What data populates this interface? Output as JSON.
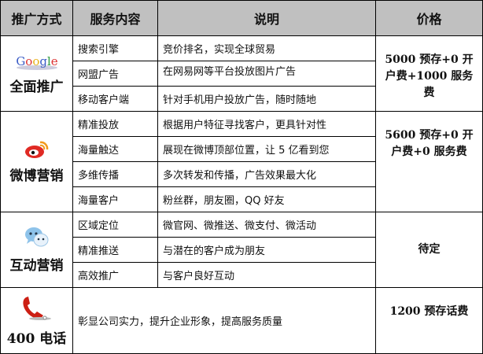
{
  "header": {
    "method": "推广方式",
    "service": "服务内容",
    "desc": "说明",
    "price": "价格"
  },
  "groups": [
    {
      "label": "全面推广",
      "icon": "google-logo",
      "logo_text": "Google",
      "rows": [
        {
          "service": "搜索引擎",
          "desc": "竞价排名，实现全球贸易"
        },
        {
          "service": "网盟广告",
          "desc": "在网易网等平台投放图片广告"
        },
        {
          "service": "移动客户端",
          "desc": "针对手机用户投放广告，随时随地"
        }
      ],
      "price": "5000 预存+0 开户费+1000 服务费"
    },
    {
      "label": "微博营销",
      "icon": "weibo-icon",
      "rows": [
        {
          "service": "精准投放",
          "desc": "根据用户特征寻找客户，更具针对性"
        },
        {
          "service": "海量触达",
          "desc": "展现在微博顶部位置，让 5 亿看到您"
        },
        {
          "service": "多维传播",
          "desc": "多次转发和传播，广告效果最大化"
        },
        {
          "service": "海量客户",
          "desc": "粉丝群，朋友圈，QQ 好友"
        }
      ],
      "price": "5600 预存+0 开户费+0 服务费"
    },
    {
      "label": "互动营销",
      "icon": "wechat-icon",
      "rows": [
        {
          "service": "区域定位",
          "desc": "微官网、微推送、微支付、微活动"
        },
        {
          "service": "精准推送",
          "desc": "与潜在的客户成为朋友"
        },
        {
          "service": "高效推广",
          "desc": "与客户良好互动"
        }
      ],
      "price": "待定"
    },
    {
      "label": "400 电话",
      "icon": "telephone-icon",
      "desc": "彰显公司实力，提升企业形象，提高服务质量",
      "price": "1200 预存话费"
    }
  ]
}
